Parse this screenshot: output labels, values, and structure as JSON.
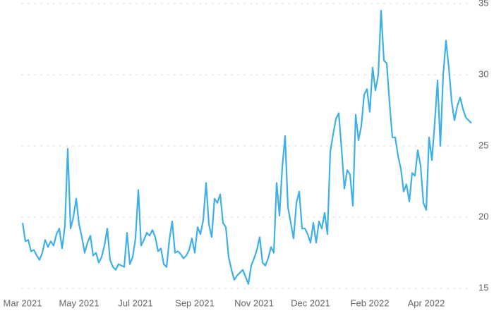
{
  "chart_data": {
    "type": "line",
    "values": [
      19.6,
      18.3,
      18.4,
      17.6,
      17.7,
      17.3,
      17.0,
      17.5,
      18.4,
      17.9,
      18.3,
      18.0,
      18.8,
      19.2,
      17.8,
      19.4,
      24.8,
      19.2,
      20.0,
      21.3,
      19.5,
      18.6,
      17.5,
      18.2,
      18.7,
      17.3,
      17.5,
      16.8,
      17.2,
      18.0,
      19.2,
      17.0,
      16.5,
      16.3,
      16.7,
      16.6,
      16.5,
      18.9,
      16.7,
      17.2,
      18.5,
      21.9,
      18.0,
      18.4,
      18.9,
      18.7,
      19.1,
      18.6,
      17.6,
      17.8,
      16.7,
      16.5,
      18.4,
      19.7,
      17.5,
      17.6,
      17.4,
      17.1,
      17.3,
      17.7,
      18.5,
      17.5,
      19.3,
      18.8,
      19.8,
      22.4,
      19.5,
      18.6,
      21.3,
      21.0,
      21.6,
      19.6,
      19.3,
      17.2,
      16.3,
      15.6,
      15.9,
      16.1,
      16.3,
      15.8,
      15.3,
      16.6,
      17.1,
      17.7,
      18.6,
      16.8,
      16.6,
      17.1,
      17.9,
      17.5,
      22.4,
      20.1,
      23.5,
      25.7,
      20.7,
      19.6,
      18.5,
      21.0,
      21.8,
      19.2,
      19.2,
      18.8,
      18.2,
      19.6,
      18.2,
      19.7,
      19.2,
      20.3,
      18.8,
      24.6,
      25.8,
      26.9,
      27.3,
      24.8,
      22.0,
      23.3,
      23.0,
      20.8,
      27.2,
      25.4,
      26.4,
      28.6,
      29.0,
      27.4,
      30.5,
      28.9,
      30.0,
      34.5,
      31.0,
      30.8,
      28.0,
      25.6,
      25.6,
      24.3,
      23.4,
      21.8,
      22.3,
      21.1,
      23.1,
      22.9,
      24.7,
      23.6,
      21.0,
      20.5,
      25.6,
      24.0,
      26.6,
      29.6,
      25.0,
      30.0,
      32.4,
      30.5,
      28.1,
      26.8,
      27.8,
      28.4,
      27.6,
      27.0,
      26.8,
      26.6
    ],
    "color": "#3fb0e6",
    "ylim": [
      15,
      35
    ],
    "yticks": [
      15,
      20,
      25,
      30,
      35
    ],
    "xticks": [
      {
        "value": 0,
        "label": "Mar 2021"
      },
      {
        "value": 20,
        "label": "May 2021"
      },
      {
        "value": 40,
        "label": "Jul 2021"
      },
      {
        "value": 61,
        "label": "Sep 2021"
      },
      {
        "value": 82,
        "label": "Nov 2021"
      },
      {
        "value": 102,
        "label": "Dec 2021"
      },
      {
        "value": 123,
        "label": "Feb 2022"
      },
      {
        "value": 143,
        "label": "Apr 2022"
      }
    ],
    "grid": true
  }
}
